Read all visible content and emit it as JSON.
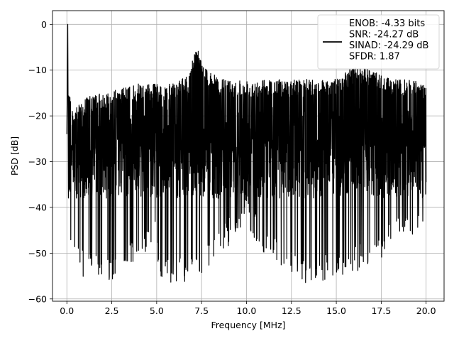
{
  "chart_data": {
    "type": "line",
    "title": "",
    "xlabel": "Frequency [MHz]",
    "ylabel": "PSD [dB]",
    "xlim": [
      -0.8,
      21.0
    ],
    "ylim": [
      -60.5,
      3.0
    ],
    "x_ticks": [
      0.0,
      2.5,
      5.0,
      7.5,
      10.0,
      12.5,
      15.0,
      17.5,
      20.0
    ],
    "x_tick_labels": [
      "0.0",
      "2.5",
      "5.0",
      "7.5",
      "10.0",
      "12.5",
      "15.0",
      "17.5",
      "20.0"
    ],
    "y_ticks": [
      0,
      -10,
      -20,
      -30,
      -40,
      -50,
      -60
    ],
    "y_tick_labels": [
      "0",
      "−10",
      "−20",
      "−30",
      "−40",
      "−50",
      "−60"
    ],
    "grid": true,
    "legend_position": "top-right",
    "line_color": "#000000",
    "series": [
      {
        "name": "ENOB: -4.33 bits\nSNR: -24.27 dB\nSINAD: -24.29 dB\nSFDR: 1.87",
        "x_range": [
          0.0,
          20.0
        ],
        "peak": {
          "x": 0.05,
          "y": 0
        },
        "upper_envelope": [
          {
            "x": 0.1,
            "y": -12
          },
          {
            "x": 0.3,
            "y": -19
          },
          {
            "x": 0.6,
            "y": -18
          },
          {
            "x": 1.0,
            "y": -16
          },
          {
            "x": 2.0,
            "y": -15
          },
          {
            "x": 3.0,
            "y": -14
          },
          {
            "x": 4.0,
            "y": -13
          },
          {
            "x": 5.0,
            "y": -13
          },
          {
            "x": 6.0,
            "y": -13
          },
          {
            "x": 6.8,
            "y": -11
          },
          {
            "x": 7.2,
            "y": -4
          },
          {
            "x": 7.6,
            "y": -9
          },
          {
            "x": 8.5,
            "y": -12
          },
          {
            "x": 10.0,
            "y": -12
          },
          {
            "x": 12.5,
            "y": -12
          },
          {
            "x": 15.0,
            "y": -12
          },
          {
            "x": 16.0,
            "y": -9
          },
          {
            "x": 17.0,
            "y": -10
          },
          {
            "x": 18.0,
            "y": -12
          },
          {
            "x": 19.0,
            "y": -12
          },
          {
            "x": 20.0,
            "y": -13
          }
        ],
        "lower_envelope": [
          {
            "x": 0.1,
            "y": -49
          },
          {
            "x": 0.5,
            "y": -52
          },
          {
            "x": 1.0,
            "y": -56
          },
          {
            "x": 1.3,
            "y": -55
          },
          {
            "x": 2.6,
            "y": -56
          },
          {
            "x": 3.2,
            "y": -54
          },
          {
            "x": 5.0,
            "y": -48
          },
          {
            "x": 5.1,
            "y": -56
          },
          {
            "x": 7.0,
            "y": -57
          },
          {
            "x": 10.0,
            "y": -44
          },
          {
            "x": 11.0,
            "y": -50
          },
          {
            "x": 12.0,
            "y": -54
          },
          {
            "x": 13.4,
            "y": -57
          },
          {
            "x": 16.3,
            "y": -54
          },
          {
            "x": 17.0,
            "y": -53
          },
          {
            "x": 18.0,
            "y": -49
          },
          {
            "x": 20.0,
            "y": -45
          }
        ]
      }
    ]
  }
}
